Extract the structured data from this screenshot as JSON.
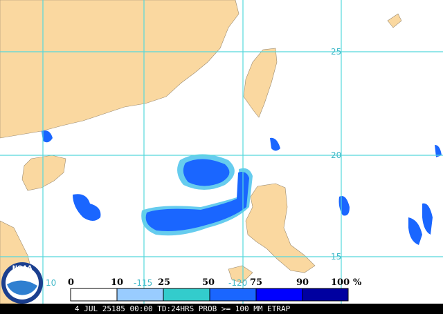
{
  "map": {
    "lat_labels": [
      "25",
      "20",
      "15",
      "10"
    ],
    "lon_labels": [
      "-115",
      "-120"
    ],
    "legend": {
      "labels": [
        "0",
        "10",
        "25",
        "50",
        "75",
        "90",
        "100"
      ],
      "unit": "%"
    },
    "logo": "NOAA",
    "footer": "4 JUL 25185 00:00 TD:24HRS PROB >= 100 MM ETRAP"
  }
}
